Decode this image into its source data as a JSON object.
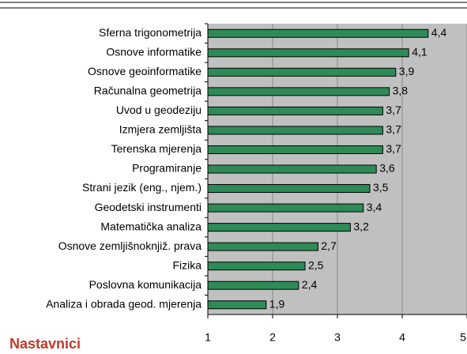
{
  "chart_data": {
    "type": "bar",
    "orientation": "horizontal",
    "title": "Nastavnici",
    "categories": [
      "Sferna trigonometrija",
      "Osnove informatike",
      "Osnove geoinformatike",
      "Računalna geometrija",
      "Uvod u geodeziju",
      "Izmjera zemljišta",
      "Terenska mjerenja",
      "Programiranje",
      "Strani jezik (eng., njem.)",
      "Geodetski instrumenti",
      "Matematička analiza",
      "Osnove zemljišnoknjiž. prava",
      "Fizika",
      "Poslovna komunikacija",
      "Analiza i obrada geod. mjerenja"
    ],
    "values": [
      4.4,
      4.1,
      3.9,
      3.8,
      3.7,
      3.7,
      3.7,
      3.6,
      3.5,
      3.4,
      3.2,
      2.7,
      2.5,
      2.4,
      1.9
    ],
    "value_labels": [
      "4,4",
      "4,1",
      "3,9",
      "3,8",
      "3,7",
      "3,7",
      "3,7",
      "3,6",
      "3,5",
      "3,4",
      "3,2",
      "2,7",
      "2,5",
      "2,4",
      "1,9"
    ],
    "color": "#2e8b57",
    "xlim": [
      1,
      5
    ],
    "xticks": [
      1,
      2,
      3,
      4,
      5
    ],
    "grid": true
  }
}
